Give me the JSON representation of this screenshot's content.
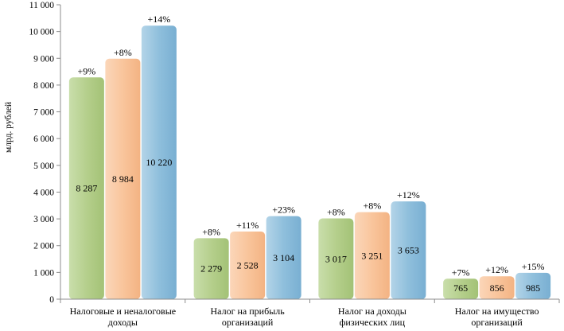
{
  "chart_data": {
    "type": "bar",
    "ylabel": "млрд. рублей",
    "ylim": [
      0,
      11000
    ],
    "yticks": [
      0,
      1000,
      2000,
      3000,
      4000,
      5000,
      6000,
      7000,
      8000,
      9000,
      10000,
      11000
    ],
    "ytick_labels": [
      "0",
      "1 000",
      "2 000",
      "3 000",
      "4 000",
      "5 000",
      "6 000",
      "7 000",
      "8 000",
      "9 000",
      "10 000",
      "11 000"
    ],
    "grid": false,
    "categories": [
      [
        "Налоговые и неналоговые",
        "доходы"
      ],
      [
        "Налог на прибыль",
        "организаций"
      ],
      [
        "Налог на доходы",
        "физических лиц"
      ],
      [
        "Налог на имущество",
        "организаций"
      ]
    ],
    "series": [
      {
        "color": "#b5cf8c",
        "values": [
          8287,
          2279,
          3017,
          765
        ],
        "value_labels": [
          "8 287",
          "2 279",
          "3 017",
          "765"
        ],
        "growth_labels": [
          "+9%",
          "+8%",
          "+8%",
          "+7%"
        ]
      },
      {
        "color": "#f9c59c",
        "values": [
          8984,
          2528,
          3251,
          856
        ],
        "value_labels": [
          "8 984",
          "2 528",
          "3 251",
          "856"
        ],
        "growth_labels": [
          "+8%",
          "+11%",
          "+8%",
          "+12%"
        ]
      },
      {
        "color": "#8fbfdc",
        "values": [
          10220,
          3104,
          3653,
          985
        ],
        "value_labels": [
          "10 220",
          "3 104",
          "3 653",
          "985"
        ],
        "growth_labels": [
          "+14%",
          "+23%",
          "+12%",
          "+15%"
        ]
      }
    ]
  }
}
